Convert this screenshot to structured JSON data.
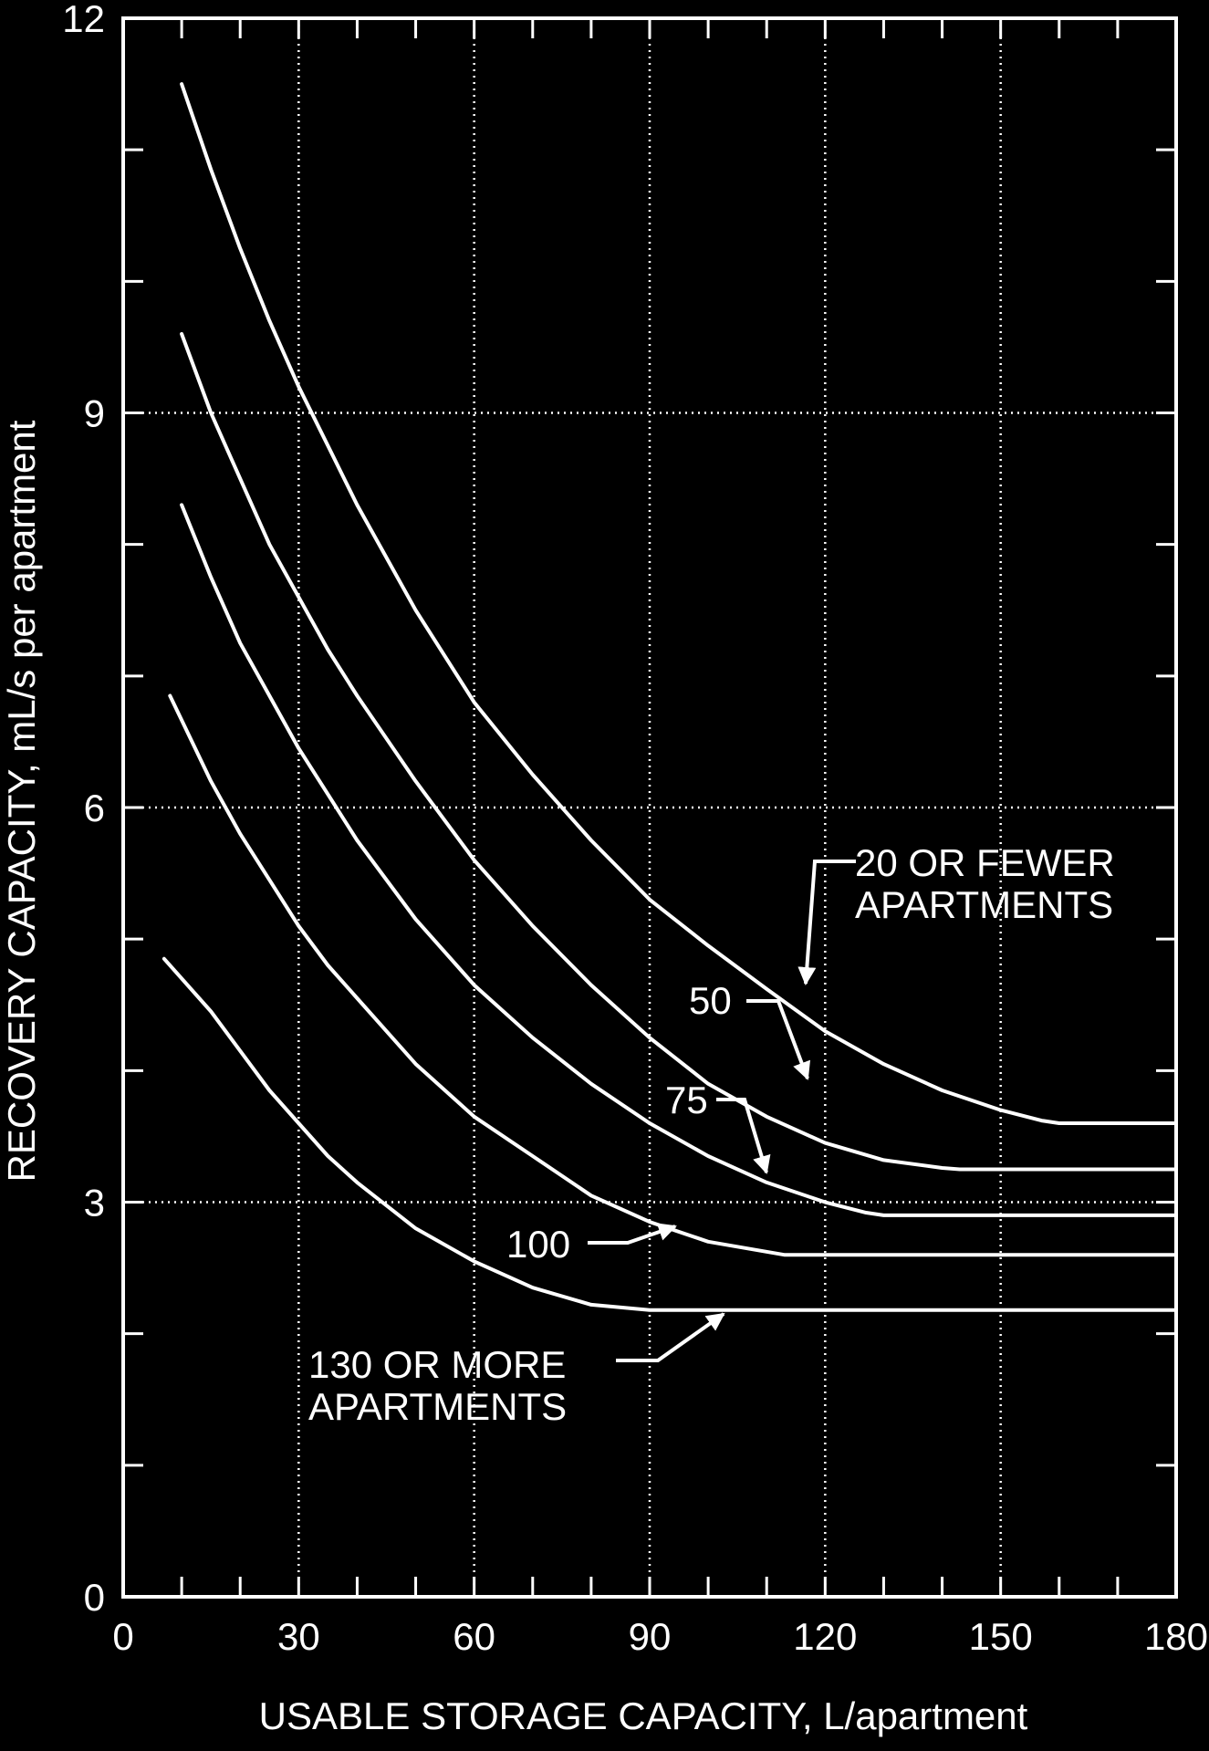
{
  "colors": {
    "background": "#000000",
    "foreground": "#ffffff"
  },
  "chart_data": {
    "type": "line",
    "xlabel": "USABLE STORAGE CAPACITY, L/apartment",
    "ylabel": "RECOVERY CAPACITY, mL/s per apartment",
    "xlim": [
      0,
      180
    ],
    "ylim": [
      0,
      12
    ],
    "x_major_ticks": [
      0,
      30,
      60,
      90,
      120,
      150,
      180
    ],
    "x_tick_labels": [
      "0",
      "30",
      "60",
      "90",
      "120",
      "150",
      "180"
    ],
    "x_minor_ticks": [
      10,
      20,
      40,
      50,
      70,
      80,
      100,
      110,
      130,
      140,
      160,
      170
    ],
    "y_major_ticks": [
      0,
      3,
      6,
      9,
      12
    ],
    "y_tick_labels": [
      "0",
      "3",
      "6",
      "9",
      "12"
    ],
    "y_minor_ticks": [
      1,
      2,
      4,
      5,
      7,
      8,
      10,
      11
    ],
    "grid": "dotted at major ticks",
    "series": [
      {
        "name": "20 OR FEWER APARTMENTS",
        "x": [
          10,
          15,
          20,
          25,
          30,
          35,
          40,
          50,
          60,
          70,
          80,
          90,
          100,
          110,
          120,
          130,
          140,
          150,
          157,
          160,
          170,
          180
        ],
        "y": [
          11.5,
          10.85,
          10.25,
          9.7,
          9.2,
          8.75,
          8.3,
          7.5,
          6.8,
          6.25,
          5.75,
          5.3,
          4.95,
          4.62,
          4.3,
          4.05,
          3.85,
          3.7,
          3.62,
          3.6,
          3.6,
          3.6
        ]
      },
      {
        "name": "50",
        "x": [
          10,
          15,
          20,
          25,
          30,
          35,
          40,
          50,
          60,
          70,
          80,
          90,
          100,
          110,
          120,
          130,
          140,
          143,
          150,
          160,
          170,
          180
        ],
        "y": [
          9.6,
          9.0,
          8.5,
          8.0,
          7.6,
          7.2,
          6.85,
          6.2,
          5.6,
          5.1,
          4.65,
          4.25,
          3.9,
          3.65,
          3.45,
          3.32,
          3.26,
          3.25,
          3.25,
          3.25,
          3.25,
          3.25
        ]
      },
      {
        "name": "75",
        "x": [
          10,
          15,
          20,
          25,
          30,
          35,
          40,
          50,
          60,
          70,
          80,
          90,
          100,
          110,
          120,
          127,
          130,
          140,
          150,
          160,
          170,
          180
        ],
        "y": [
          8.3,
          7.75,
          7.25,
          6.85,
          6.45,
          6.1,
          5.75,
          5.15,
          4.65,
          4.25,
          3.9,
          3.6,
          3.35,
          3.15,
          3.0,
          2.92,
          2.9,
          2.9,
          2.9,
          2.9,
          2.9,
          2.9
        ]
      },
      {
        "name": "100",
        "x": [
          8,
          15,
          20,
          25,
          30,
          35,
          40,
          50,
          60,
          70,
          80,
          90,
          100,
          113,
          120,
          130,
          140,
          150,
          160,
          170,
          180
        ],
        "y": [
          6.85,
          6.2,
          5.8,
          5.45,
          5.1,
          4.8,
          4.55,
          4.05,
          3.65,
          3.35,
          3.05,
          2.85,
          2.7,
          2.6,
          2.6,
          2.6,
          2.6,
          2.6,
          2.6,
          2.6,
          2.6
        ]
      },
      {
        "name": "130 OR MORE APARTMENTS",
        "x": [
          7,
          15,
          20,
          25,
          30,
          35,
          40,
          50,
          60,
          70,
          80,
          90,
          100,
          110,
          120,
          130,
          140,
          150,
          160,
          170,
          180
        ],
        "y": [
          4.85,
          4.45,
          4.15,
          3.85,
          3.6,
          3.35,
          3.15,
          2.8,
          2.55,
          2.35,
          2.22,
          2.18,
          2.18,
          2.18,
          2.18,
          2.18,
          2.18,
          2.18,
          2.18,
          2.18,
          2.18
        ]
      }
    ],
    "annotations": [
      {
        "lines": [
          "20 OR FEWER",
          "APARTMENTS"
        ],
        "series": "20 OR FEWER APARTMENTS"
      },
      {
        "lines": [
          "50"
        ],
        "series": "50"
      },
      {
        "lines": [
          "75"
        ],
        "series": "75"
      },
      {
        "lines": [
          "100"
        ],
        "series": "100"
      },
      {
        "lines": [
          "130 OR MORE",
          "APARTMENTS"
        ],
        "series": "130 OR MORE APARTMENTS"
      }
    ]
  }
}
